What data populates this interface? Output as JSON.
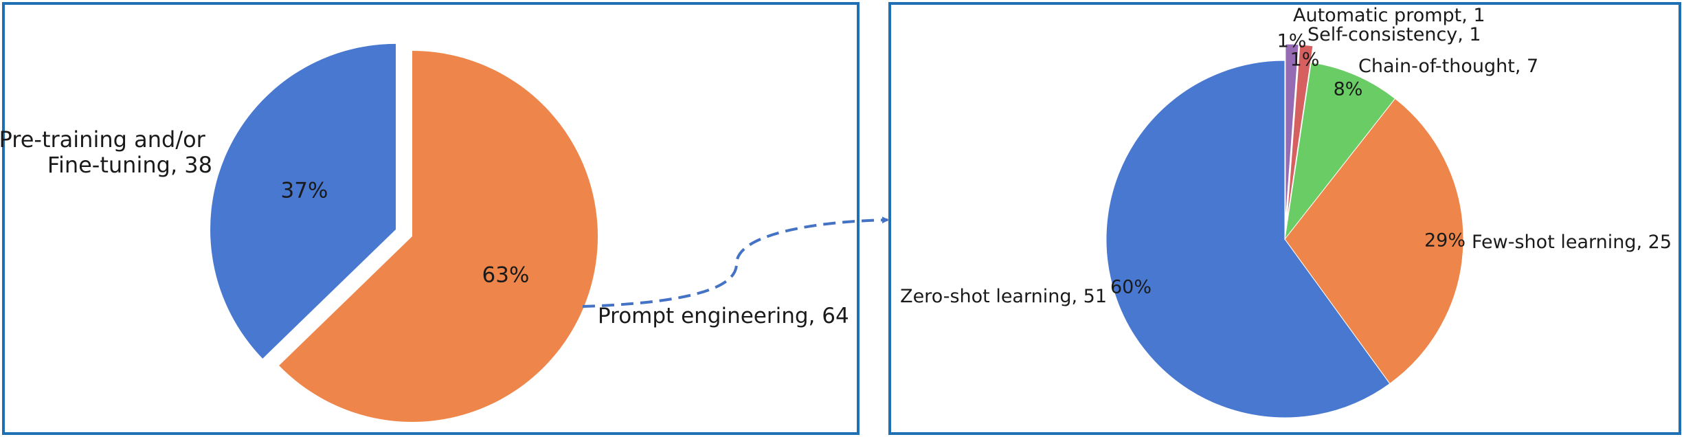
{
  "chart_data": [
    {
      "type": "pie",
      "title": "",
      "slices": [
        {
          "label": "Pre-training and/or Fine-tuning",
          "label_lines": [
            "Pre-training and/or",
            "Fine-tuning, 38"
          ],
          "value": 38,
          "pct_label": "37%",
          "color": "#4878d0",
          "exploded": true
        },
        {
          "label": "Prompt engineering",
          "label_lines": [
            "Prompt engineering, 64"
          ],
          "value": 64,
          "pct_label": "63%",
          "color": "#ee854a",
          "exploded": false
        }
      ],
      "start_angle_deg": 90,
      "direction": "counterclockwise"
    },
    {
      "type": "pie",
      "title": "",
      "slices": [
        {
          "label": "Zero-shot learning",
          "label_lines": [
            "Zero-shot learning, 51"
          ],
          "value": 51,
          "pct_label": "60%",
          "color": "#4878d0",
          "exploded": false
        },
        {
          "label": "Few-shot learning",
          "label_lines": [
            "Few-shot learning, 25"
          ],
          "value": 25,
          "pct_label": "29%",
          "color": "#ee854a",
          "exploded": false
        },
        {
          "label": "Chain-of-thought",
          "label_lines": [
            "Chain-of-thought, 7"
          ],
          "value": 7,
          "pct_label": "8%",
          "color": "#6acc64",
          "exploded": false
        },
        {
          "label": "Self-consistency",
          "label_lines": [
            "Self-consistency, 1"
          ],
          "value": 1,
          "pct_label": "1%",
          "color": "#d65f5f",
          "exploded": true
        },
        {
          "label": "Automatic prompt",
          "label_lines": [
            "Automatic prompt, 1"
          ],
          "value": 1,
          "pct_label": "1%",
          "color": "#956cb4",
          "exploded": true
        }
      ],
      "start_angle_deg": 90,
      "direction": "counterclockwise"
    }
  ],
  "panel_border_color": "#1f6fb5",
  "connector_color": "#4472c4"
}
